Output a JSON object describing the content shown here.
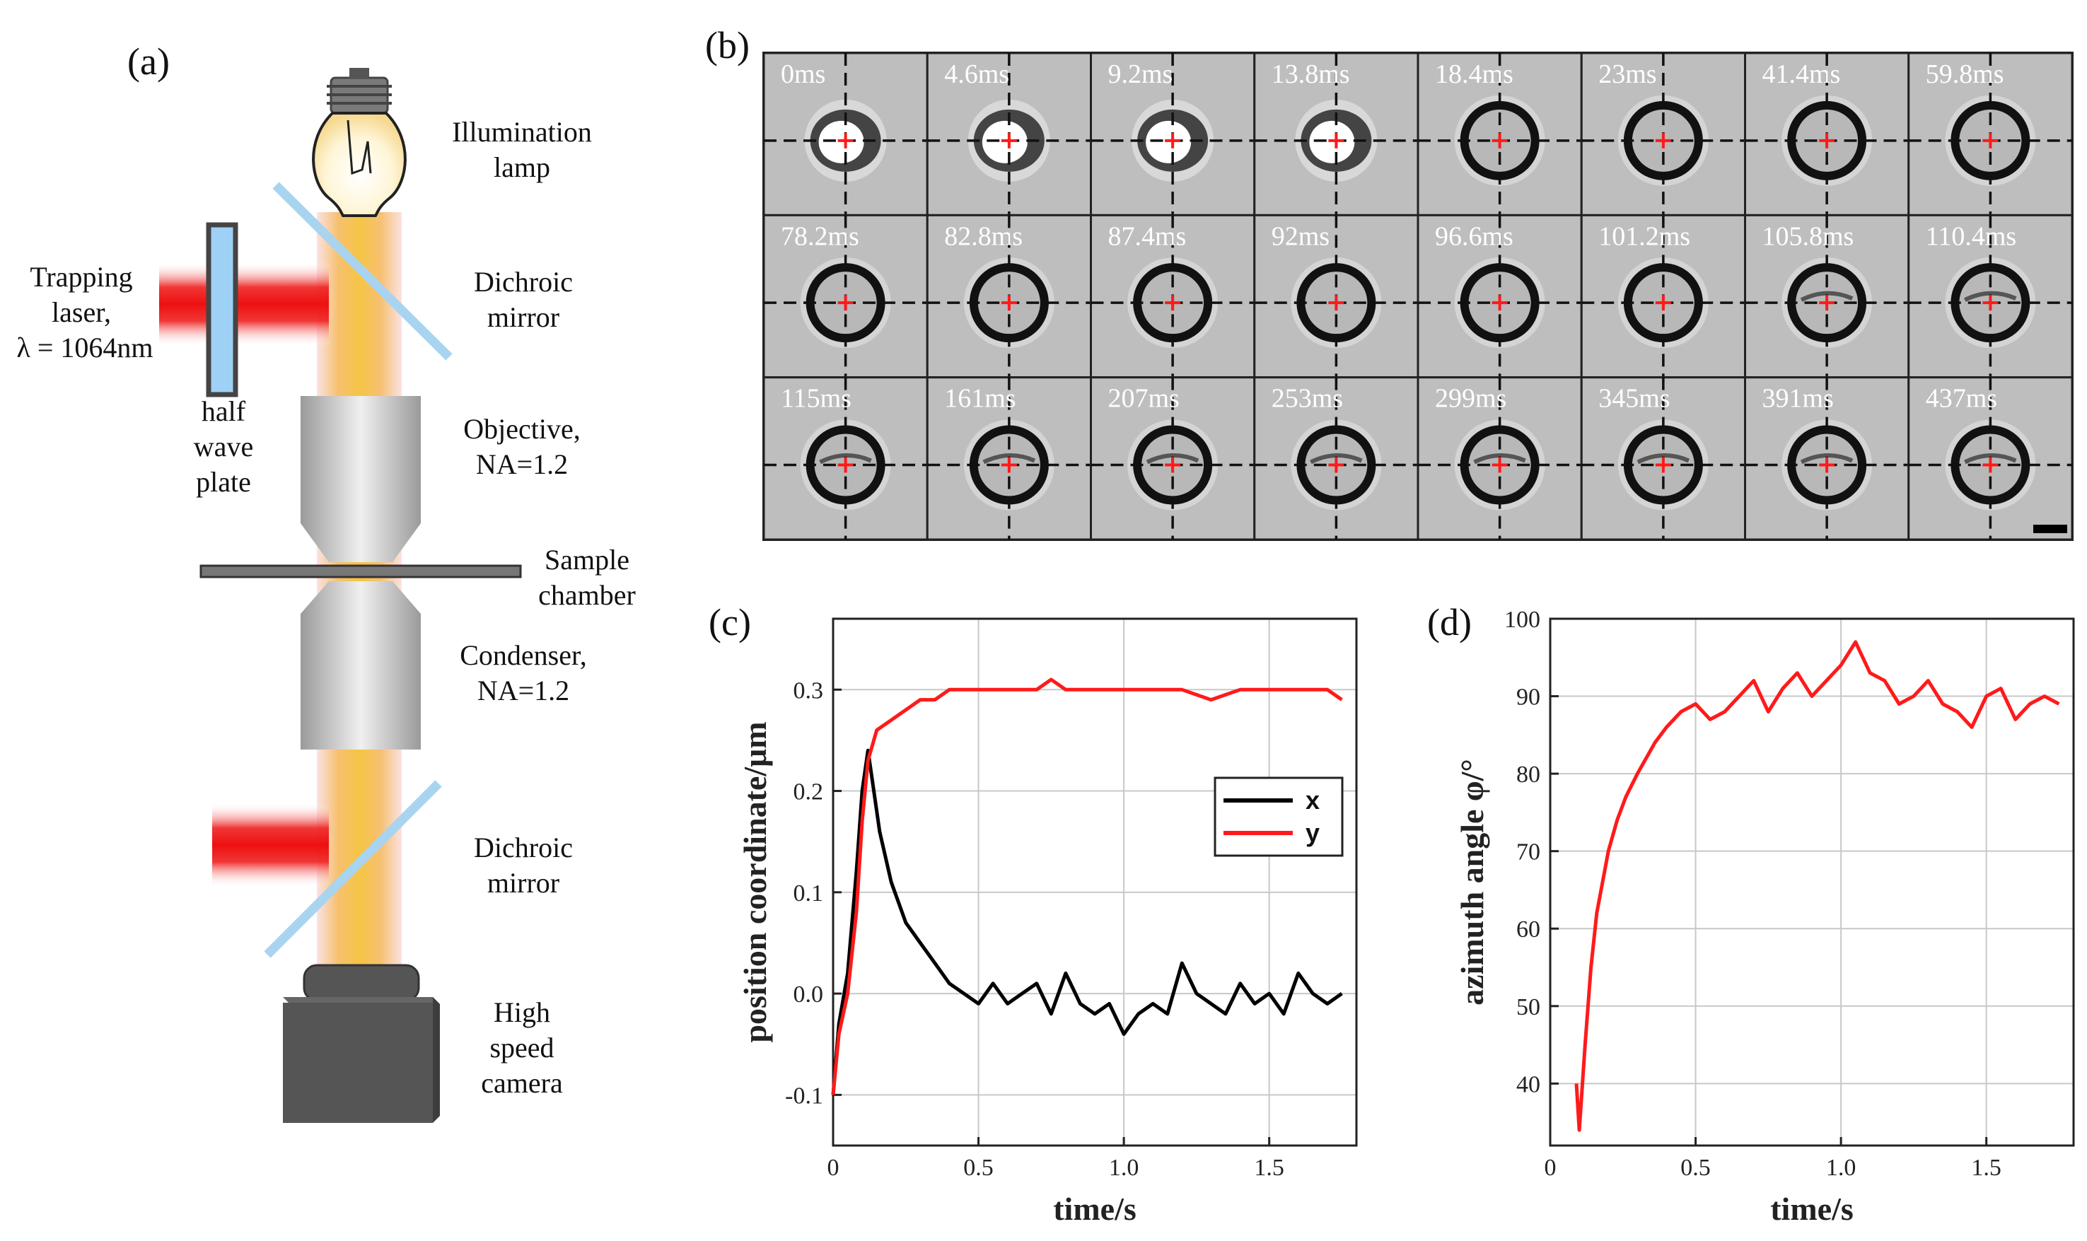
{
  "panel_labels": {
    "a": "(a)",
    "b": "(b)",
    "c": "(c)",
    "d": "(d)"
  },
  "setup": {
    "illumination": [
      "Illumination",
      "lamp"
    ],
    "trapping": [
      "Trapping",
      "laser,",
      "λ = 1064nm"
    ],
    "dichroic1": [
      "Dichroic",
      "mirror"
    ],
    "halfwave": [
      "half",
      "wave",
      "plate"
    ],
    "objective": [
      "Objective,",
      "NA=1.2"
    ],
    "sample": [
      "Sample",
      "chamber"
    ],
    "condenser": [
      "Condenser,",
      "NA=1.2"
    ],
    "dichroic2": [
      "Dichroic",
      "mirror"
    ],
    "camera": [
      "High",
      "speed",
      "camera"
    ]
  },
  "frames": {
    "labels": [
      "0ms",
      "4.6ms",
      "9.2ms",
      "13.8ms",
      "18.4ms",
      "23ms",
      "41.4ms",
      "59.8ms",
      "78.2ms",
      "82.8ms",
      "87.4ms",
      "92ms",
      "96.6ms",
      "101.2ms",
      "105.8ms",
      "110.4ms",
      "115ms",
      "161ms",
      "207ms",
      "253ms",
      "299ms",
      "345ms",
      "391ms",
      "437ms"
    ]
  },
  "colors": {
    "laser": "#ee2020",
    "lamp": "#f4c040",
    "x_series": "#000000",
    "y_series": "#ff1a1a",
    "mirror": "#a8d4f0"
  },
  "chart_data": [
    {
      "panel": "c",
      "type": "line",
      "xlabel": "time/s",
      "ylabel": "position coordinate/μm",
      "xlim": [
        0,
        1.8
      ],
      "ylim": [
        -0.15,
        0.37
      ],
      "xticks": [
        "0",
        "0.5",
        "1.0",
        "1.5"
      ],
      "yticks": [
        "-0.1",
        "0.0",
        "0.1",
        "0.2",
        "0.3"
      ],
      "grid": true,
      "legend": "right",
      "series": [
        {
          "name": "x",
          "color": "#000000",
          "points": [
            [
              0.0,
              -0.1
            ],
            [
              0.02,
              -0.03
            ],
            [
              0.05,
              0.02
            ],
            [
              0.08,
              0.12
            ],
            [
              0.1,
              0.2
            ],
            [
              0.12,
              0.24
            ],
            [
              0.14,
              0.2
            ],
            [
              0.16,
              0.16
            ],
            [
              0.2,
              0.11
            ],
            [
              0.25,
              0.07
            ],
            [
              0.3,
              0.05
            ],
            [
              0.35,
              0.03
            ],
            [
              0.4,
              0.01
            ],
            [
              0.45,
              0.0
            ],
            [
              0.5,
              -0.01
            ],
            [
              0.55,
              0.01
            ],
            [
              0.6,
              -0.01
            ],
            [
              0.65,
              0.0
            ],
            [
              0.7,
              0.01
            ],
            [
              0.75,
              -0.02
            ],
            [
              0.8,
              0.02
            ],
            [
              0.85,
              -0.01
            ],
            [
              0.9,
              -0.02
            ],
            [
              0.95,
              -0.01
            ],
            [
              1.0,
              -0.04
            ],
            [
              1.05,
              -0.02
            ],
            [
              1.1,
              -0.01
            ],
            [
              1.15,
              -0.02
            ],
            [
              1.2,
              0.03
            ],
            [
              1.25,
              0.0
            ],
            [
              1.3,
              -0.01
            ],
            [
              1.35,
              -0.02
            ],
            [
              1.4,
              0.01
            ],
            [
              1.45,
              -0.01
            ],
            [
              1.5,
              0.0
            ],
            [
              1.55,
              -0.02
            ],
            [
              1.6,
              0.02
            ],
            [
              1.65,
              0.0
            ],
            [
              1.7,
              -0.01
            ],
            [
              1.75,
              0.0
            ]
          ]
        },
        {
          "name": "y",
          "color": "#ff1a1a",
          "points": [
            [
              0.0,
              -0.1
            ],
            [
              0.02,
              -0.04
            ],
            [
              0.05,
              0.0
            ],
            [
              0.08,
              0.08
            ],
            [
              0.1,
              0.17
            ],
            [
              0.12,
              0.23
            ],
            [
              0.15,
              0.26
            ],
            [
              0.2,
              0.27
            ],
            [
              0.25,
              0.28
            ],
            [
              0.3,
              0.29
            ],
            [
              0.35,
              0.29
            ],
            [
              0.4,
              0.3
            ],
            [
              0.5,
              0.3
            ],
            [
              0.6,
              0.3
            ],
            [
              0.7,
              0.3
            ],
            [
              0.75,
              0.31
            ],
            [
              0.8,
              0.3
            ],
            [
              0.9,
              0.3
            ],
            [
              1.0,
              0.3
            ],
            [
              1.1,
              0.3
            ],
            [
              1.2,
              0.3
            ],
            [
              1.3,
              0.29
            ],
            [
              1.4,
              0.3
            ],
            [
              1.5,
              0.3
            ],
            [
              1.6,
              0.3
            ],
            [
              1.7,
              0.3
            ],
            [
              1.75,
              0.29
            ]
          ]
        }
      ]
    },
    {
      "panel": "d",
      "type": "line",
      "xlabel": "time/s",
      "ylabel": "azimuth angle φ/°",
      "xlim": [
        0,
        1.8
      ],
      "ylim": [
        32,
        100
      ],
      "xticks": [
        "0",
        "0.5",
        "1.0",
        "1.5"
      ],
      "yticks": [
        "40",
        "50",
        "60",
        "70",
        "80",
        "90",
        "100"
      ],
      "grid": true,
      "series": [
        {
          "name": "azimuth",
          "color": "#ff1a1a",
          "points": [
            [
              0.09,
              40
            ],
            [
              0.1,
              34
            ],
            [
              0.12,
              45
            ],
            [
              0.14,
              55
            ],
            [
              0.16,
              62
            ],
            [
              0.18,
              66
            ],
            [
              0.2,
              70
            ],
            [
              0.23,
              74
            ],
            [
              0.26,
              77
            ],
            [
              0.3,
              80
            ],
            [
              0.33,
              82
            ],
            [
              0.36,
              84
            ],
            [
              0.4,
              86
            ],
            [
              0.45,
              88
            ],
            [
              0.5,
              89
            ],
            [
              0.55,
              87
            ],
            [
              0.6,
              88
            ],
            [
              0.65,
              90
            ],
            [
              0.7,
              92
            ],
            [
              0.75,
              88
            ],
            [
              0.8,
              91
            ],
            [
              0.85,
              93
            ],
            [
              0.9,
              90
            ],
            [
              0.95,
              92
            ],
            [
              1.0,
              94
            ],
            [
              1.05,
              97
            ],
            [
              1.1,
              93
            ],
            [
              1.15,
              92
            ],
            [
              1.2,
              89
            ],
            [
              1.25,
              90
            ],
            [
              1.3,
              92
            ],
            [
              1.35,
              89
            ],
            [
              1.4,
              88
            ],
            [
              1.45,
              86
            ],
            [
              1.5,
              90
            ],
            [
              1.55,
              91
            ],
            [
              1.6,
              87
            ],
            [
              1.65,
              89
            ],
            [
              1.7,
              90
            ],
            [
              1.75,
              89
            ]
          ]
        }
      ]
    }
  ]
}
